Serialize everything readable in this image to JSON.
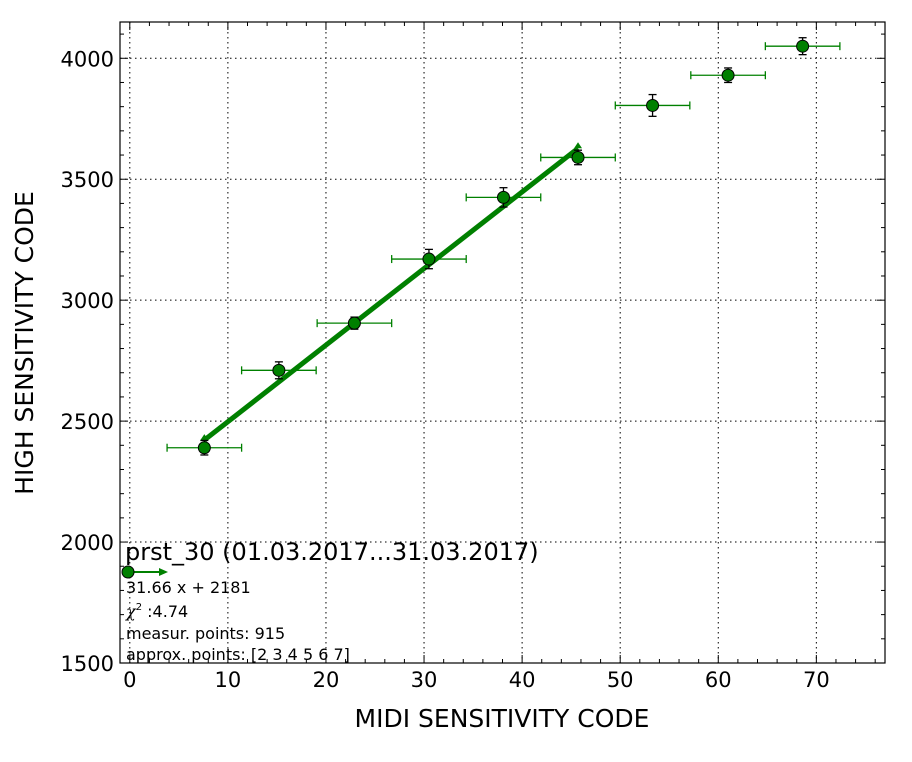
{
  "chart_data": {
    "type": "scatter",
    "title": "prst_30 (01.03.2017...31.03.2017)",
    "xlabel": "MIDI SENSITIVITY CODE",
    "ylabel": "HIGH SENSITIVITY CODE",
    "xlim": [
      -1,
      77
    ],
    "ylim": [
      1500,
      4150
    ],
    "x_ticks": [
      0,
      10,
      20,
      30,
      40,
      50,
      60,
      70
    ],
    "y_ticks": [
      1500,
      2000,
      2500,
      3000,
      3500,
      4000
    ],
    "grid": true,
    "marker_color": "#008000",
    "line_color": "#008000",
    "series": [
      {
        "x": [
          7.6,
          15.2,
          22.9,
          30.5,
          38.1,
          45.7,
          53.3,
          61.0,
          68.6
        ],
        "y": [
          2390,
          2710,
          2905,
          3170,
          3425,
          3590,
          3805,
          3930,
          4050
        ],
        "x_err": [
          3.8,
          3.8,
          3.8,
          3.8,
          3.8,
          3.8,
          3.8,
          3.8,
          3.8
        ],
        "y_err": [
          30,
          35,
          25,
          40,
          40,
          30,
          45,
          30,
          35
        ]
      }
    ],
    "fit": {
      "slope": 31.66,
      "intercept": 2181,
      "x_range": [
        7.6,
        45.7
      ]
    },
    "annotations": {
      "equation": "31.66 x + 2181",
      "chi_label": "χ",
      "chi_sup": "2",
      "chi_value": " :4.74",
      "measur_points": "measur. points: 915",
      "approx_points": "approx. points: [2 3 4 5 6 7]"
    }
  }
}
